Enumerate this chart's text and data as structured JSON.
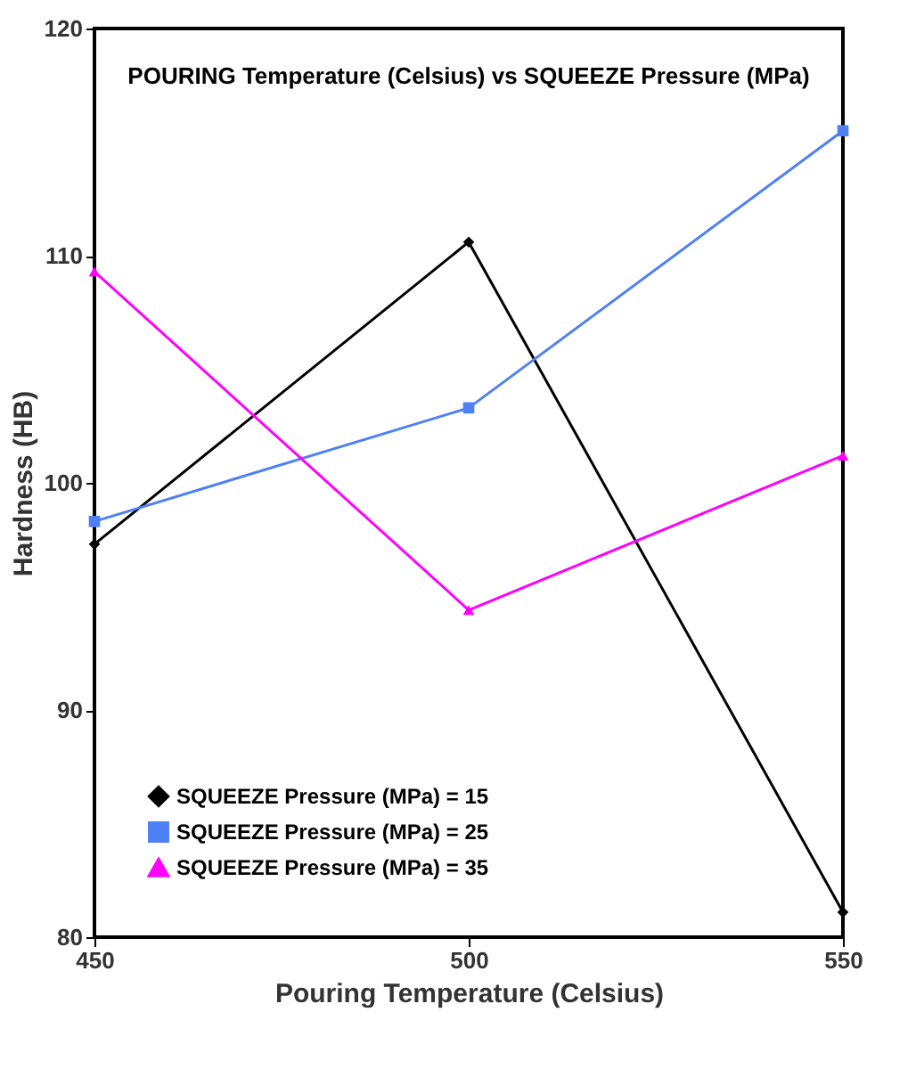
{
  "chart_data": {
    "type": "line",
    "title": "POURING Temperature (Celsius) vs SQUEEZE Pressure (MPa)",
    "xlabel": "Pouring Temperature (Celsius)",
    "ylabel": "Hardness (HB)",
    "x": [
      450,
      500,
      550
    ],
    "xlim": [
      450,
      550
    ],
    "xticks": [
      450,
      500,
      550
    ],
    "ylim": [
      80,
      120
    ],
    "yticks": [
      80,
      90,
      100,
      110,
      120
    ],
    "grid": false,
    "legend": "bottom left",
    "line_style": "solid",
    "series": [
      {
        "name": "SQUEEZE Pressure (MPa) = 15",
        "color": "#000000",
        "marker": "diamond",
        "values": [
          97.3,
          110.6,
          81.1
        ]
      },
      {
        "name": "SQUEEZE Pressure (MPa) = 25",
        "color": "#4f81f5",
        "marker": "square",
        "values": [
          98.3,
          103.3,
          115.5
        ]
      },
      {
        "name": "SQUEEZE Pressure (MPa) = 35",
        "color": "#ff00ff",
        "marker": "triangle",
        "values": [
          109.3,
          94.4,
          101.2
        ]
      }
    ]
  }
}
